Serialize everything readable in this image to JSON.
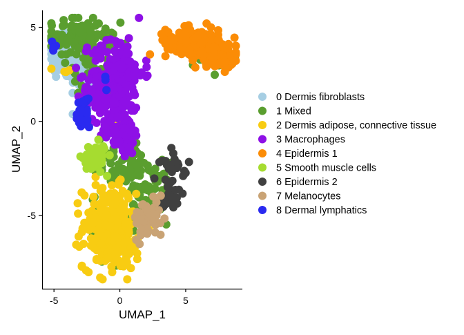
{
  "chart_data": {
    "type": "scatter",
    "xlabel": "UMAP_1",
    "ylabel": "UMAP_2",
    "xlim": [
      -5.9,
      9.3
    ],
    "ylim": [
      -8.9,
      5.9
    ],
    "x_ticks": [
      {
        "value": -5,
        "label": "-5"
      },
      {
        "value": 0,
        "label": "0"
      },
      {
        "value": 5,
        "label": "5"
      }
    ],
    "y_ticks": [
      {
        "value": -5,
        "label": "-5"
      },
      {
        "value": 0,
        "label": "0"
      },
      {
        "value": 5,
        "label": "5"
      }
    ],
    "grid": false,
    "legend_position": "right",
    "series": [
      {
        "name": "0 Dermis fibroblasts",
        "color": "#a6cee3",
        "clusters": [
          {
            "cx": -4.2,
            "cy": 3.6,
            "sx": 0.6,
            "sy": 0.7,
            "n": 160
          },
          {
            "cx": -2.8,
            "cy": 2.9,
            "sx": 0.5,
            "sy": 0.6,
            "n": 60
          },
          {
            "cx": -2.2,
            "cy": 1.6,
            "sx": 0.4,
            "sy": 0.5,
            "n": 20
          }
        ]
      },
      {
        "name": "1 Mixed",
        "color": "#5a9e2f",
        "clusters": [
          {
            "cx": -3.4,
            "cy": 4.5,
            "sx": 1.0,
            "sy": 0.6,
            "n": 80
          },
          {
            "cx": -1.7,
            "cy": 3.3,
            "sx": 0.9,
            "sy": 1.0,
            "n": 60
          },
          {
            "cx": 0.2,
            "cy": -2.4,
            "sx": 0.9,
            "sy": 0.7,
            "n": 50
          },
          {
            "cx": 1.9,
            "cy": -3.8,
            "sx": 0.9,
            "sy": 0.8,
            "n": 60
          },
          {
            "cx": 3.2,
            "cy": -3.5,
            "sx": 0.5,
            "sy": 0.7,
            "n": 15
          },
          {
            "cx": 7.2,
            "cy": 3.3,
            "sx": 0.8,
            "sy": 0.3,
            "n": 15
          },
          {
            "cx": -0.6,
            "cy": -5.8,
            "sx": 0.8,
            "sy": 1.0,
            "n": 25
          },
          {
            "cx": -1.3,
            "cy": -2.2,
            "sx": 0.4,
            "sy": 0.6,
            "n": 10
          }
        ]
      },
      {
        "name": "2 Dermis adipose, connective tissue",
        "color": "#f8cc12",
        "clusters": [
          {
            "cx": -0.8,
            "cy": -5.6,
            "sx": 1.0,
            "sy": 1.1,
            "n": 230
          },
          {
            "cx": 0.2,
            "cy": -7.0,
            "sx": 0.5,
            "sy": 0.5,
            "n": 40
          },
          {
            "cx": -4.3,
            "cy": 2.5,
            "sx": 0.4,
            "sy": 0.3,
            "n": 4
          },
          {
            "cx": -0.4,
            "cy": 0.0,
            "sx": 0.3,
            "sy": 0.4,
            "n": 4
          }
        ]
      },
      {
        "name": "3 Macrophages",
        "color": "#8e10e6",
        "clusters": [
          {
            "cx": -0.2,
            "cy": 2.6,
            "sx": 1.0,
            "sy": 1.0,
            "n": 170
          },
          {
            "cx": -0.3,
            "cy": 0.2,
            "sx": 0.9,
            "sy": 0.8,
            "n": 90
          },
          {
            "cx": -1.8,
            "cy": 1.4,
            "sx": 0.5,
            "sy": 0.6,
            "n": 35
          },
          {
            "cx": 0.6,
            "cy": -0.9,
            "sx": 0.4,
            "sy": 0.5,
            "n": 25
          }
        ]
      },
      {
        "name": "4 Epidermis 1",
        "color": "#fb8c06",
        "clusters": [
          {
            "cx": 5.5,
            "cy": 4.3,
            "sx": 1.0,
            "sy": 0.35,
            "n": 140
          },
          {
            "cx": 7.3,
            "cy": 3.6,
            "sx": 0.9,
            "sy": 0.3,
            "n": 110
          },
          {
            "cx": 8.1,
            "cy": 3.1,
            "sx": 0.3,
            "sy": 0.2,
            "n": 30
          }
        ]
      },
      {
        "name": "5 Smooth muscle cells",
        "color": "#a6dc30",
        "clusters": [
          {
            "cx": -1.9,
            "cy": -1.9,
            "sx": 0.45,
            "sy": 0.35,
            "n": 60
          }
        ]
      },
      {
        "name": "6 Epidermis 2",
        "color": "#404040",
        "clusters": [
          {
            "cx": 4.1,
            "cy": -2.3,
            "sx": 0.5,
            "sy": 0.4,
            "n": 20
          },
          {
            "cx": 3.9,
            "cy": -3.8,
            "sx": 0.3,
            "sy": 0.5,
            "n": 25
          },
          {
            "cx": 3.4,
            "cy": -4.3,
            "sx": 0.2,
            "sy": 0.3,
            "n": 8
          }
        ]
      },
      {
        "name": "7 Melanocytes",
        "color": "#c9a375",
        "clusters": [
          {
            "cx": 2.2,
            "cy": -5.2,
            "sx": 0.6,
            "sy": 0.5,
            "n": 60
          }
        ]
      },
      {
        "name": "8 Dermal lymphatics",
        "color": "#2a2af0",
        "clusters": [
          {
            "cx": -2.8,
            "cy": 0.3,
            "sx": 0.25,
            "sy": 0.5,
            "n": 28
          },
          {
            "cx": -5.0,
            "cy": 4.0,
            "sx": 0.2,
            "sy": 0.3,
            "n": 4
          },
          {
            "cx": -1.2,
            "cy": 2.4,
            "sx": 0.3,
            "sy": 0.3,
            "n": 3
          }
        ]
      }
    ]
  }
}
